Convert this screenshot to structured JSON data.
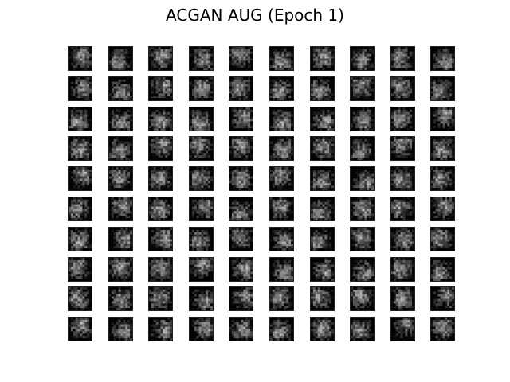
{
  "figure": {
    "title": "ACGAN AUG (Epoch 1)"
  },
  "sample_grid": {
    "rows": 10,
    "cols": 10,
    "content": "generated grayscale sample images",
    "colors": {
      "dark": "#111111",
      "mid": "#6a6a6a",
      "light": "#e6e6e6",
      "frame": "#222222"
    }
  }
}
